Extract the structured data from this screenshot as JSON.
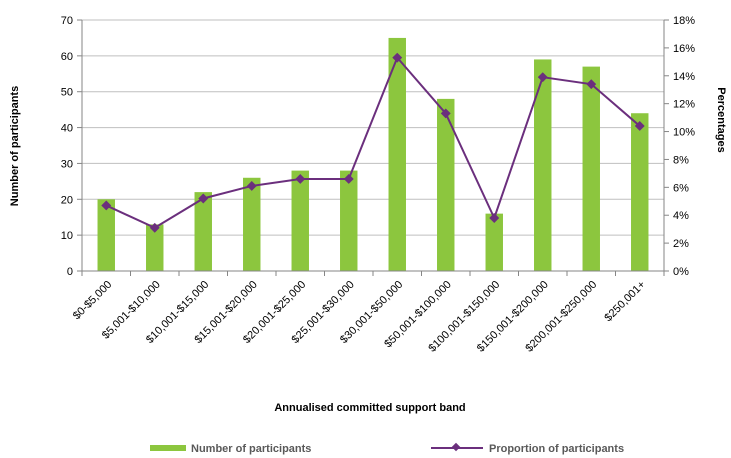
{
  "chart_data": {
    "type": "bar",
    "categories": [
      "$0-$5,000",
      "$5,001-$10,000",
      "$10,001-$15,000",
      "$15,001-$20,000",
      "$20,001-$25,000",
      "$25,001-$30,000",
      "$30,001-$50,000",
      "$50,001-$100,000",
      "$100,001-$150,000",
      "$150,001-$200,000",
      "$200,001-$250,000",
      "$250,001+"
    ],
    "series": [
      {
        "name": "Number of participants",
        "type": "bar",
        "axis": "left",
        "color": "#8cc63e",
        "values": [
          20,
          13,
          22,
          26,
          28,
          28,
          65,
          48,
          16,
          59,
          57,
          44
        ]
      },
      {
        "name": "Proportion of participants",
        "type": "line",
        "axis": "right",
        "color": "#6b2f7d",
        "values": [
          0.047,
          0.031,
          0.052,
          0.061,
          0.066,
          0.066,
          0.153,
          0.113,
          0.038,
          0.139,
          0.134,
          0.104
        ]
      }
    ],
    "title": "",
    "xlabel": "Annualised committed support band",
    "ylabel": "Number of participants",
    "y2label": "Percentages",
    "ylim": [
      0,
      70
    ],
    "y2lim": [
      0,
      0.18
    ],
    "yticks": [
      "0",
      "10",
      "20",
      "30",
      "40",
      "50",
      "60",
      "70"
    ],
    "y2ticks": [
      "0%",
      "2%",
      "4%",
      "6%",
      "8%",
      "10%",
      "12%",
      "14%",
      "16%",
      "18%"
    ],
    "grid": true,
    "legend": "bottom"
  }
}
